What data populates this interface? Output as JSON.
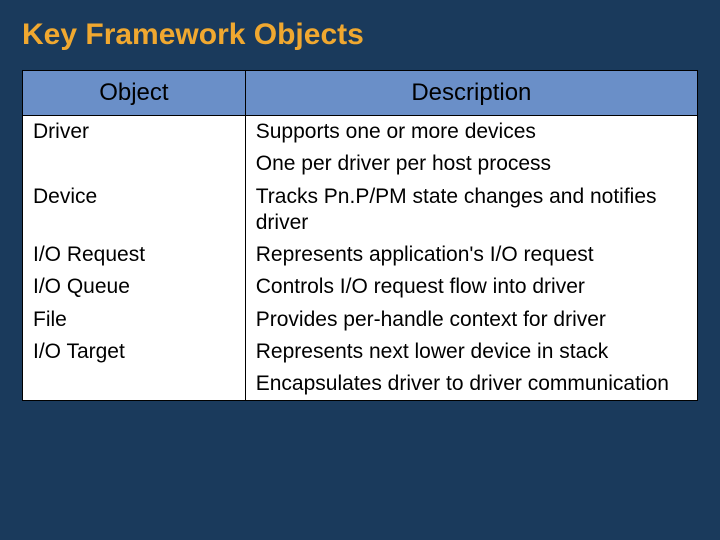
{
  "slide": {
    "title": "Key Framework Objects",
    "background_color": "#1a3a5c",
    "title_color": "#f0a830",
    "title_fontsize": 30
  },
  "table": {
    "type": "table",
    "header_bg": "#6a8fc8",
    "header_text_color": "#000000",
    "header_fontsize": 24,
    "cell_bg": "#ffffff",
    "cell_text_color": "#000000",
    "cell_fontsize": 21,
    "border_color": "#000000",
    "columns": [
      {
        "label": "Object",
        "width_pct": 33,
        "align": "center"
      },
      {
        "label": "Description",
        "width_pct": 67,
        "align": "center"
      }
    ],
    "rows": [
      {
        "object": "Driver",
        "description": "Supports one or more devices"
      },
      {
        "object": "",
        "description": "One per driver per host process"
      },
      {
        "object": "Device",
        "description": "Tracks Pn.P/PM state changes and notifies driver"
      },
      {
        "object": "I/O Request",
        "description": "Represents application's I/O request"
      },
      {
        "object": "I/O Queue",
        "description": "Controls I/O request flow into driver"
      },
      {
        "object": "File",
        "description": "Provides per-handle context for driver"
      },
      {
        "object": "I/O Target",
        "description": "Represents next lower device in stack"
      },
      {
        "object": "",
        "description": "Encapsulates driver to driver communication"
      }
    ]
  }
}
